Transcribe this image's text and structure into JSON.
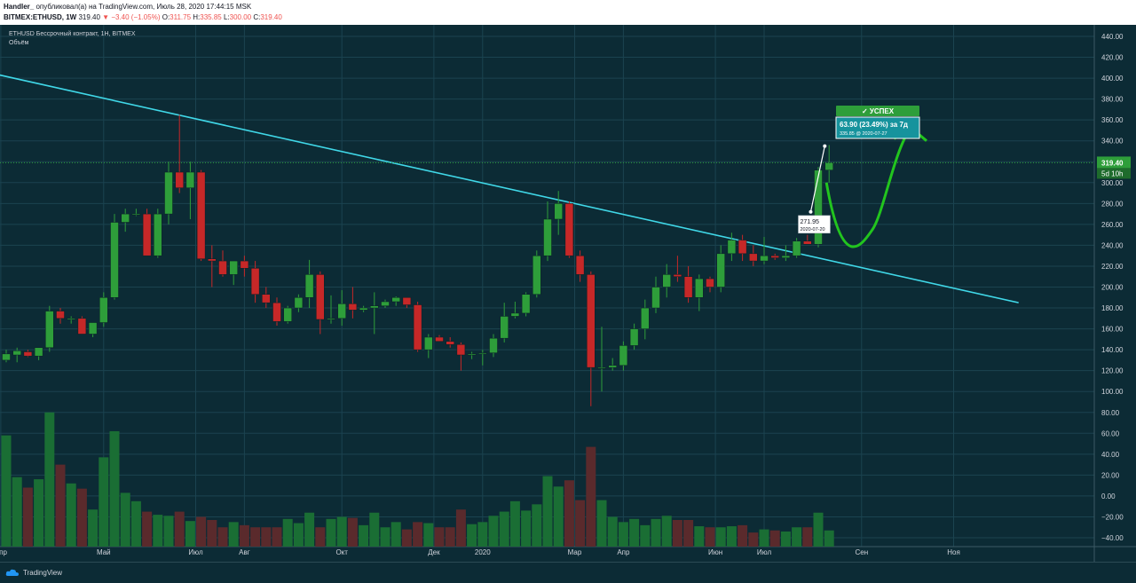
{
  "header": {
    "author": "Handler_",
    "published_text": "опубликовал(а) на TradingView.com, Июль 28, 2020 17:44:15 MSK",
    "symbol": "BITMEX:ETHUSD, 1W",
    "last": "319.40",
    "change": "−3.40 (−1.05%)",
    "o_label": "O:",
    "o": "311.75",
    "h_label": "H:",
    "h": "335.85",
    "l_label": "L:",
    "l": "300.00",
    "c_label": "C:",
    "c": "319.40"
  },
  "legend": {
    "title": "ETHUSD Бессрочный контракт, 1Н, BITMEX",
    "volume": "Объём"
  },
  "footer": {
    "brand": "TradingView"
  },
  "colors": {
    "bg": "#0c2b35",
    "up": "#2e9e3a",
    "down": "#c62828",
    "trend": "#40d8e8",
    "target": "#22c51e"
  },
  "chart_data": {
    "type": "candlestick",
    "ylim": [
      -40,
      440
    ],
    "yticks": [
      440,
      420,
      400,
      380,
      360,
      340,
      320,
      300,
      280,
      260,
      240,
      220,
      200,
      180,
      160,
      140,
      120,
      100,
      80,
      60,
      40,
      20,
      0,
      -20,
      -40
    ],
    "ytick_labels": [
      "440.00",
      "420.00",
      "400.00",
      "380.00",
      "360.00",
      "340.00",
      "320.00",
      "300.00",
      "280.00",
      "260.00",
      "240.00",
      "220.00",
      "200.00",
      "180.00",
      "160.00",
      "140.00",
      "120.00",
      "100.00",
      "80.00",
      "60.00",
      "40.00",
      "20.00",
      "0.00",
      "−20.00",
      "−40.00"
    ],
    "xticks": [
      {
        "label": "Апр",
        "bar": -0.5
      },
      {
        "label": "Май",
        "bar": 9
      },
      {
        "label": "Июл",
        "bar": 17.5
      },
      {
        "label": "Авг",
        "bar": 22
      },
      {
        "label": "Окт",
        "bar": 31
      },
      {
        "label": "Дек",
        "bar": 39.5
      },
      {
        "label": "2020",
        "bar": 44
      },
      {
        "label": "Мар",
        "bar": 52.5
      },
      {
        "label": "Апр",
        "bar": 57
      },
      {
        "label": "Июн",
        "bar": 65.5
      },
      {
        "label": "Июл",
        "bar": 70
      },
      {
        "label": "Сен",
        "bar": 79
      },
      {
        "label": "Ноя",
        "bar": 87.5
      }
    ],
    "bars": [
      {
        "o": 130,
        "h": 140,
        "l": 128,
        "c": 136,
        "v": 58
      },
      {
        "o": 135,
        "h": 142,
        "l": 128,
        "c": 139,
        "v": 18
      },
      {
        "o": 138,
        "h": 140,
        "l": 133,
        "c": 134,
        "v": 8
      },
      {
        "o": 134,
        "h": 142,
        "l": 130,
        "c": 142,
        "v": 16
      },
      {
        "o": 142,
        "h": 182,
        "l": 138,
        "c": 177,
        "v": 80
      },
      {
        "o": 177,
        "h": 180,
        "l": 165,
        "c": 170,
        "v": 30
      },
      {
        "o": 170,
        "h": 172,
        "l": 165,
        "c": 170,
        "v": 12
      },
      {
        "o": 170,
        "h": 172,
        "l": 155,
        "c": 155,
        "v": 7
      },
      {
        "o": 155,
        "h": 166,
        "l": 152,
        "c": 166,
        "v": -13
      },
      {
        "o": 166,
        "h": 195,
        "l": 162,
        "c": 190,
        "v": 37
      },
      {
        "o": 190,
        "h": 270,
        "l": 188,
        "c": 262,
        "v": 62
      },
      {
        "o": 262,
        "h": 275,
        "l": 253,
        "c": 270,
        "v": 3
      },
      {
        "o": 270,
        "h": 275,
        "l": 268,
        "c": 270,
        "v": -5
      },
      {
        "o": 270,
        "h": 275,
        "l": 230,
        "c": 230,
        "v": -15
      },
      {
        "o": 230,
        "h": 275,
        "l": 228,
        "c": 270,
        "v": -18
      },
      {
        "o": 270,
        "h": 320,
        "l": 260,
        "c": 310,
        "v": -19
      },
      {
        "o": 310,
        "h": 365,
        "l": 290,
        "c": 295,
        "v": -15
      },
      {
        "o": 295,
        "h": 320,
        "l": 265,
        "c": 310,
        "v": -24
      },
      {
        "o": 310,
        "h": 312,
        "l": 225,
        "c": 227,
        "v": -20
      },
      {
        "o": 227,
        "h": 240,
        "l": 200,
        "c": 225,
        "v": -23
      },
      {
        "o": 225,
        "h": 235,
        "l": 210,
        "c": 212,
        "v": -30
      },
      {
        "o": 212,
        "h": 225,
        "l": 202,
        "c": 225,
        "v": -25
      },
      {
        "o": 225,
        "h": 230,
        "l": 210,
        "c": 218,
        "v": -28
      },
      {
        "o": 218,
        "h": 225,
        "l": 185,
        "c": 193,
        "v": -30
      },
      {
        "o": 193,
        "h": 200,
        "l": 180,
        "c": 185,
        "v": -30
      },
      {
        "o": 185,
        "h": 190,
        "l": 163,
        "c": 167,
        "v": -30
      },
      {
        "o": 167,
        "h": 182,
        "l": 165,
        "c": 180,
        "v": -22
      },
      {
        "o": 180,
        "h": 193,
        "l": 176,
        "c": 190,
        "v": -26
      },
      {
        "o": 190,
        "h": 226,
        "l": 180,
        "c": 212,
        "v": -16
      },
      {
        "o": 212,
        "h": 215,
        "l": 155,
        "c": 169,
        "v": -30
      },
      {
        "o": 169,
        "h": 192,
        "l": 165,
        "c": 170,
        "v": -22
      },
      {
        "o": 170,
        "h": 197,
        "l": 163,
        "c": 184,
        "v": -20
      },
      {
        "o": 184,
        "h": 200,
        "l": 170,
        "c": 178,
        "v": -21
      },
      {
        "o": 178,
        "h": 182,
        "l": 176,
        "c": 180,
        "v": -28
      },
      {
        "o": 180,
        "h": 195,
        "l": 155,
        "c": 182,
        "v": -16
      },
      {
        "o": 182,
        "h": 188,
        "l": 180,
        "c": 186,
        "v": -30
      },
      {
        "o": 186,
        "h": 191,
        "l": 182,
        "c": 190,
        "v": -25
      },
      {
        "o": 190,
        "h": 190,
        "l": 180,
        "c": 183,
        "v": -32
      },
      {
        "o": 183,
        "h": 186,
        "l": 138,
        "c": 140,
        "v": -25
      },
      {
        "o": 140,
        "h": 155,
        "l": 132,
        "c": 152,
        "v": -26
      },
      {
        "o": 152,
        "h": 154,
        "l": 148,
        "c": 148,
        "v": -30
      },
      {
        "o": 148,
        "h": 152,
        "l": 142,
        "c": 145,
        "v": -30
      },
      {
        "o": 145,
        "h": 147,
        "l": 120,
        "c": 135,
        "v": -13
      },
      {
        "o": 135,
        "h": 138,
        "l": 131,
        "c": 136,
        "v": -27
      },
      {
        "o": 136,
        "h": 140,
        "l": 125,
        "c": 137,
        "v": -25
      },
      {
        "o": 137,
        "h": 155,
        "l": 133,
        "c": 151,
        "v": -19
      },
      {
        "o": 151,
        "h": 185,
        "l": 147,
        "c": 172,
        "v": -15
      },
      {
        "o": 172,
        "h": 186,
        "l": 170,
        "c": 175,
        "v": -5
      },
      {
        "o": 175,
        "h": 195,
        "l": 172,
        "c": 193,
        "v": -14
      },
      {
        "o": 193,
        "h": 235,
        "l": 190,
        "c": 230,
        "v": -8
      },
      {
        "o": 230,
        "h": 282,
        "l": 225,
        "c": 265,
        "v": 19
      },
      {
        "o": 265,
        "h": 292,
        "l": 250,
        "c": 280,
        "v": 9
      },
      {
        "o": 280,
        "h": 282,
        "l": 228,
        "c": 230,
        "v": 15
      },
      {
        "o": 230,
        "h": 235,
        "l": 205,
        "c": 212,
        "v": -4
      },
      {
        "o": 212,
        "h": 215,
        "l": 86,
        "c": 123,
        "v": 47
      },
      {
        "o": 123,
        "h": 162,
        "l": 100,
        "c": 123,
        "v": -4
      },
      {
        "o": 123,
        "h": 132,
        "l": 120,
        "c": 125,
        "v": -20
      },
      {
        "o": 125,
        "h": 148,
        "l": 120,
        "c": 144,
        "v": -25
      },
      {
        "o": 144,
        "h": 165,
        "l": 140,
        "c": 160,
        "v": -22
      },
      {
        "o": 160,
        "h": 188,
        "l": 150,
        "c": 180,
        "v": -28
      },
      {
        "o": 180,
        "h": 210,
        "l": 175,
        "c": 200,
        "v": -22
      },
      {
        "o": 200,
        "h": 222,
        "l": 190,
        "c": 212,
        "v": -19
      },
      {
        "o": 212,
        "h": 230,
        "l": 205,
        "c": 210,
        "v": -23
      },
      {
        "o": 210,
        "h": 220,
        "l": 185,
        "c": 190,
        "v": -23
      },
      {
        "o": 190,
        "h": 212,
        "l": 177,
        "c": 208,
        "v": -29
      },
      {
        "o": 208,
        "h": 210,
        "l": 195,
        "c": 200,
        "v": -30
      },
      {
        "o": 200,
        "h": 240,
        "l": 195,
        "c": 232,
        "v": -30
      },
      {
        "o": 232,
        "h": 252,
        "l": 225,
        "c": 245,
        "v": -29
      },
      {
        "o": 245,
        "h": 250,
        "l": 225,
        "c": 232,
        "v": -28
      },
      {
        "o": 232,
        "h": 240,
        "l": 220,
        "c": 225,
        "v": -35
      },
      {
        "o": 225,
        "h": 248,
        "l": 222,
        "c": 230,
        "v": -32
      },
      {
        "o": 230,
        "h": 232,
        "l": 226,
        "c": 228,
        "v": -33
      },
      {
        "o": 228,
        "h": 240,
        "l": 225,
        "c": 230,
        "v": -34
      },
      {
        "o": 230,
        "h": 247,
        "l": 228,
        "c": 244,
        "v": -30
      },
      {
        "o": 244,
        "h": 250,
        "l": 241,
        "c": 241,
        "v": -30
      },
      {
        "o": 241,
        "h": 315,
        "l": 238,
        "c": 312,
        "v": -16
      },
      {
        "o": 312,
        "h": 336,
        "l": 300,
        "c": 319,
        "v": -33
      }
    ],
    "price_label": "319.40",
    "countdown_label": "5d 10h",
    "trendline": {
      "x0": -0.6,
      "y0": 403,
      "x1": 93.5,
      "y1": 185
    },
    "measure": {
      "status": "✓ УСПЕХ",
      "result": "63.90 (23.49%) за 7д",
      "detail": "335.85 @ 2020-07-27",
      "start_price": "271.95",
      "start_date": "2020-07-20"
    }
  }
}
